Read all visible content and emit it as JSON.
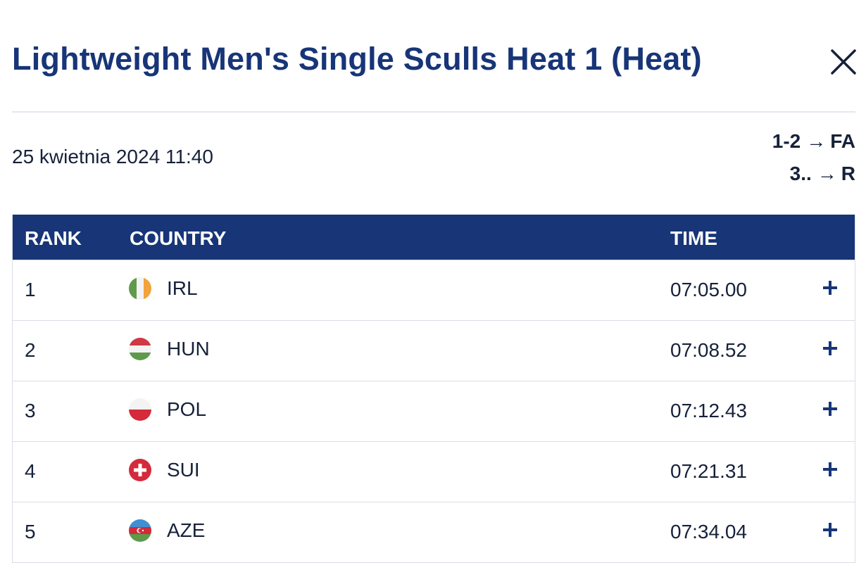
{
  "header": {
    "title": "Lightweight Men's Single Sculls Heat 1 (Heat)",
    "close_icon": "close-icon"
  },
  "event": {
    "date": "25 kwietnia 2024 11:40"
  },
  "progression": [
    {
      "places": "1-2",
      "arrow": "→",
      "to": "FA"
    },
    {
      "places": "3..",
      "arrow": "→",
      "to": "R"
    }
  ],
  "table": {
    "columns": {
      "rank": "RANK",
      "country": "COUNTRY",
      "time": "TIME"
    },
    "rows": [
      {
        "rank": "1",
        "country": "IRL",
        "flag": "ireland-flag-icon",
        "time": "07:05.00",
        "expand_icon": "plus-icon"
      },
      {
        "rank": "2",
        "country": "HUN",
        "flag": "hungary-flag-icon",
        "time": "07:08.52",
        "expand_icon": "plus-icon"
      },
      {
        "rank": "3",
        "country": "POL",
        "flag": "poland-flag-icon",
        "time": "07:12.43",
        "expand_icon": "plus-icon"
      },
      {
        "rank": "4",
        "country": "SUI",
        "flag": "switzerland-flag-icon",
        "time": "07:21.31",
        "expand_icon": "plus-icon"
      },
      {
        "rank": "5",
        "country": "AZE",
        "flag": "azerbaijan-flag-icon",
        "time": "07:34.04",
        "expand_icon": "plus-icon"
      }
    ]
  },
  "colors": {
    "brand_navy": "#173577",
    "text": "#16213a",
    "divider": "#e4e7ee"
  }
}
